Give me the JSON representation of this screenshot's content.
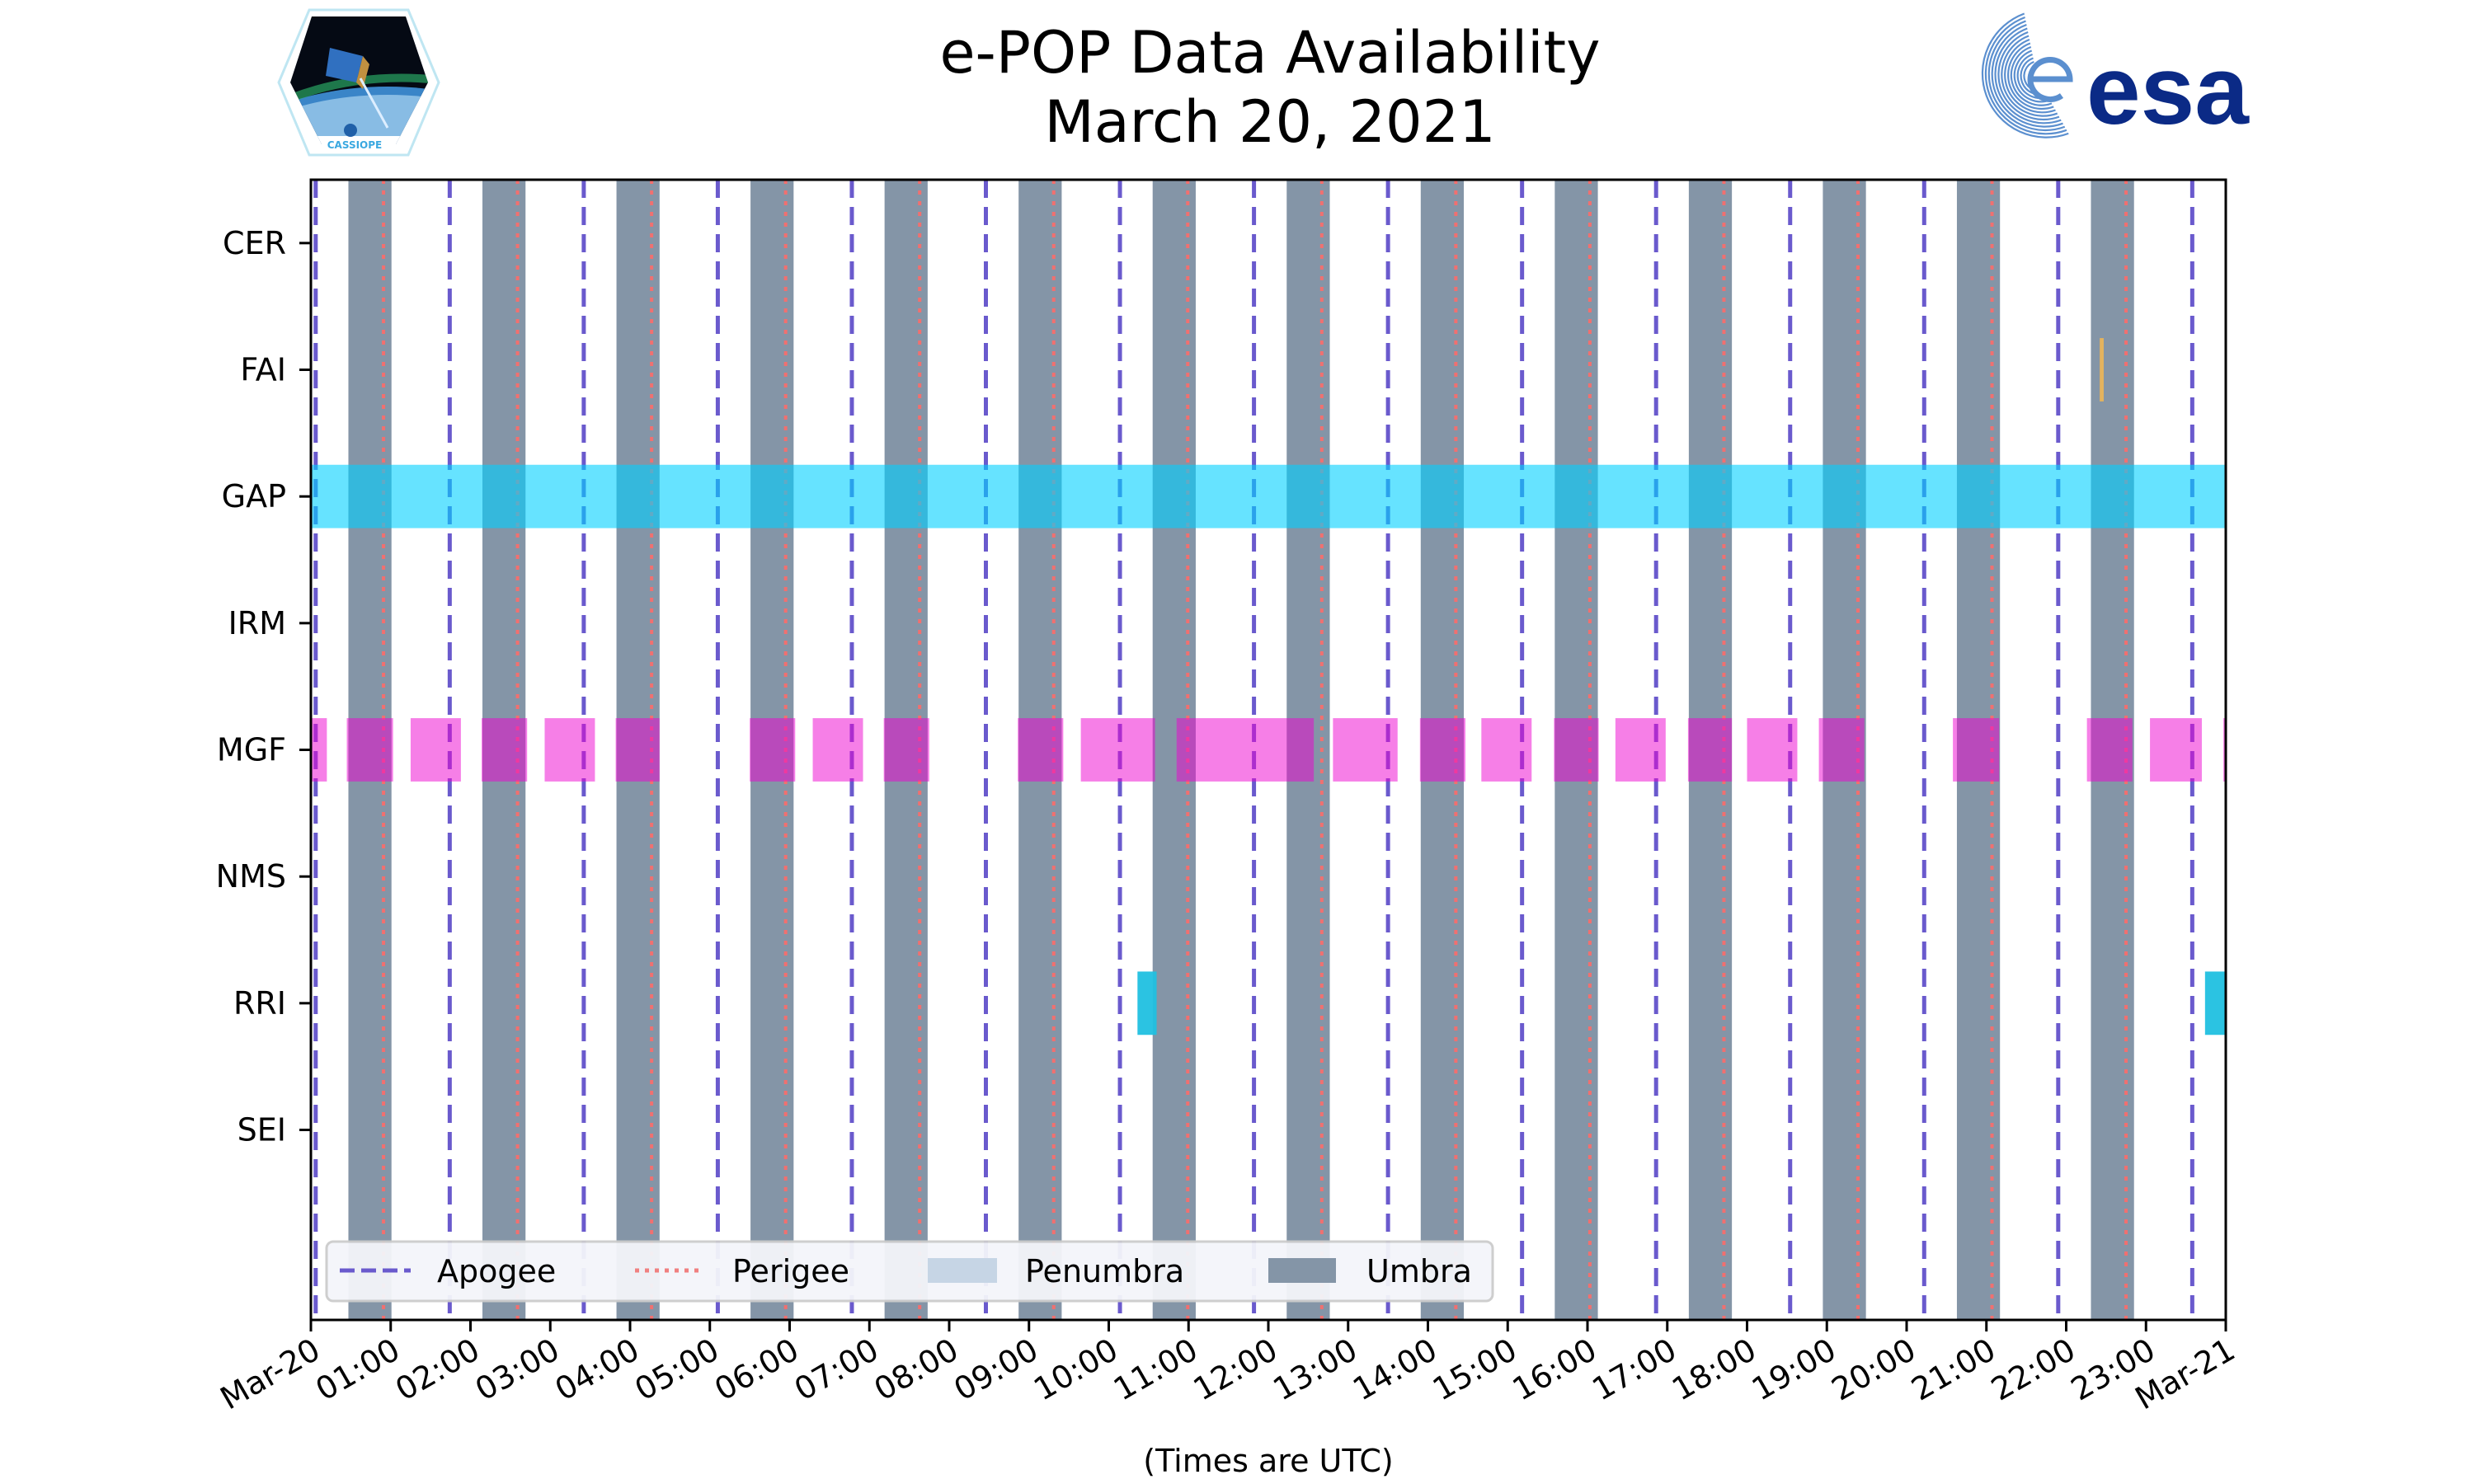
{
  "chart_data": {
    "type": "timeline",
    "title": [
      "e-POP Data Availability",
      "March 20, 2021"
    ],
    "xlabel": "(Times are UTC)",
    "xlim": [
      0,
      24
    ],
    "x_unit": "hours UTC",
    "xtick_labels": [
      "Mar-20",
      "01:00",
      "02:00",
      "03:00",
      "04:00",
      "05:00",
      "06:00",
      "07:00",
      "08:00",
      "09:00",
      "10:00",
      "11:00",
      "12:00",
      "13:00",
      "14:00",
      "15:00",
      "16:00",
      "17:00",
      "18:00",
      "19:00",
      "20:00",
      "21:00",
      "22:00",
      "23:00",
      "Mar-21"
    ],
    "rows": [
      "CER",
      "FAI",
      "GAP",
      "IRM",
      "MGF",
      "NMS",
      "RRI",
      "SEI"
    ],
    "apogee": [
      0.06,
      1.74,
      3.42,
      5.1,
      6.78,
      8.46,
      10.14,
      11.82,
      13.5,
      15.18,
      16.86,
      18.54,
      20.22,
      21.9,
      23.58
    ],
    "perigee": [
      0.91,
      2.59,
      4.27,
      5.95,
      7.63,
      9.31,
      10.99,
      12.67,
      14.35,
      16.03,
      17.71,
      19.39,
      21.07,
      22.75
    ],
    "umbra": [
      [
        0.47,
        1.01
      ],
      [
        2.15,
        2.69
      ],
      [
        3.83,
        4.37
      ],
      [
        5.51,
        6.05
      ],
      [
        7.19,
        7.73
      ],
      [
        8.87,
        9.41
      ],
      [
        10.55,
        11.09
      ],
      [
        12.23,
        12.77
      ],
      [
        13.91,
        14.45
      ],
      [
        15.59,
        16.13
      ],
      [
        17.27,
        17.81
      ],
      [
        18.95,
        19.49
      ],
      [
        20.63,
        21.17
      ],
      [
        22.31,
        22.85
      ]
    ],
    "penumbra": [],
    "series": [
      {
        "name": "CER",
        "color": "#f0a030",
        "intervals": []
      },
      {
        "name": "FAI",
        "color": "#e8b45a",
        "intervals": [
          [
            22.42,
            22.47
          ]
        ]
      },
      {
        "name": "GAP",
        "color": "#00d0ff",
        "intervals": [
          [
            0,
            24
          ]
        ]
      },
      {
        "name": "IRM",
        "color": "#888888",
        "intervals": []
      },
      {
        "name": "MGF",
        "color": "#ee00d0",
        "intervals": [
          [
            0,
            0.2
          ],
          [
            0.45,
            1.03
          ],
          [
            1.25,
            1.88
          ],
          [
            2.14,
            2.71
          ],
          [
            2.93,
            3.56
          ],
          [
            3.82,
            4.37
          ],
          [
            5.5,
            6.07
          ],
          [
            6.29,
            6.92
          ],
          [
            7.18,
            7.75
          ],
          [
            8.86,
            9.43
          ],
          [
            9.65,
            10.58
          ],
          [
            10.85,
            12.57
          ],
          [
            12.81,
            13.62
          ],
          [
            13.9,
            14.47
          ],
          [
            14.67,
            15.3
          ],
          [
            15.58,
            16.14
          ],
          [
            16.35,
            16.98
          ],
          [
            17.26,
            17.81
          ],
          [
            18.0,
            18.63
          ],
          [
            18.9,
            19.47
          ],
          [
            20.58,
            21.16
          ],
          [
            22.26,
            22.83
          ],
          [
            23.05,
            23.7
          ],
          [
            23.97,
            24
          ]
        ]
      },
      {
        "name": "NMS",
        "color": "#888888",
        "intervals": []
      },
      {
        "name": "RRI",
        "color": "#20c0e0",
        "intervals": [
          [
            10.36,
            10.6
          ],
          [
            23.74,
            24
          ]
        ]
      },
      {
        "name": "SEI",
        "color": "#888888",
        "intervals": []
      }
    ],
    "legend": {
      "placement": "lower-left",
      "entries": [
        {
          "label": "Apogee",
          "style": "dashed",
          "color": "#6a5acd"
        },
        {
          "label": "Perigee",
          "style": "dotted",
          "color": "#f08080"
        },
        {
          "label": "Penumbra",
          "style": "patch",
          "color": "#c6d5e5"
        },
        {
          "label": "Umbra",
          "style": "patch",
          "color": "#8495a7"
        }
      ]
    },
    "colors": {
      "apogee": "#6a5acd",
      "perigee": "#f07070",
      "umbra": "#8495a7",
      "penumbra": "#c6d5e5"
    }
  },
  "logos": {
    "left": "CASSIOPE",
    "right": "esa"
  }
}
